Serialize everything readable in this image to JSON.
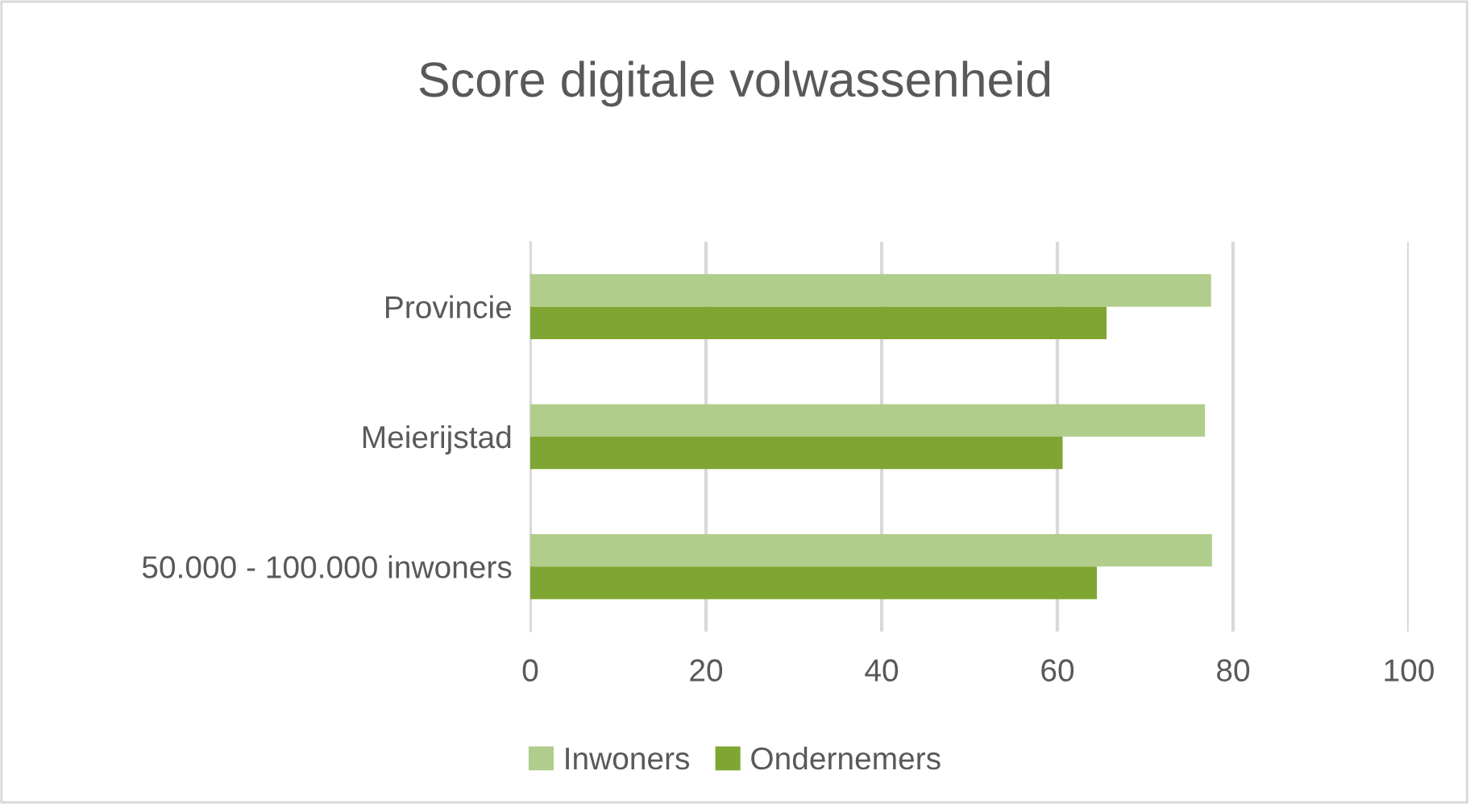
{
  "chart_data": {
    "type": "bar",
    "orientation": "horizontal",
    "title": "Score digitale volwassenheid",
    "categories": [
      "Provincie",
      "Meierijstad",
      "50.000 - 100.000 inwoners"
    ],
    "series": [
      {
        "name": "Inwoners",
        "color": "#b1cd8b",
        "values": [
          77.5,
          76.8,
          77.6
        ]
      },
      {
        "name": "Ondernemers",
        "color": "#7fa632",
        "values": [
          65.6,
          60.6,
          64.5
        ]
      }
    ],
    "xlim": [
      0,
      100
    ],
    "xticks": [
      0,
      20,
      40,
      60,
      80,
      100
    ],
    "grid": "x",
    "legend": "bottom"
  }
}
